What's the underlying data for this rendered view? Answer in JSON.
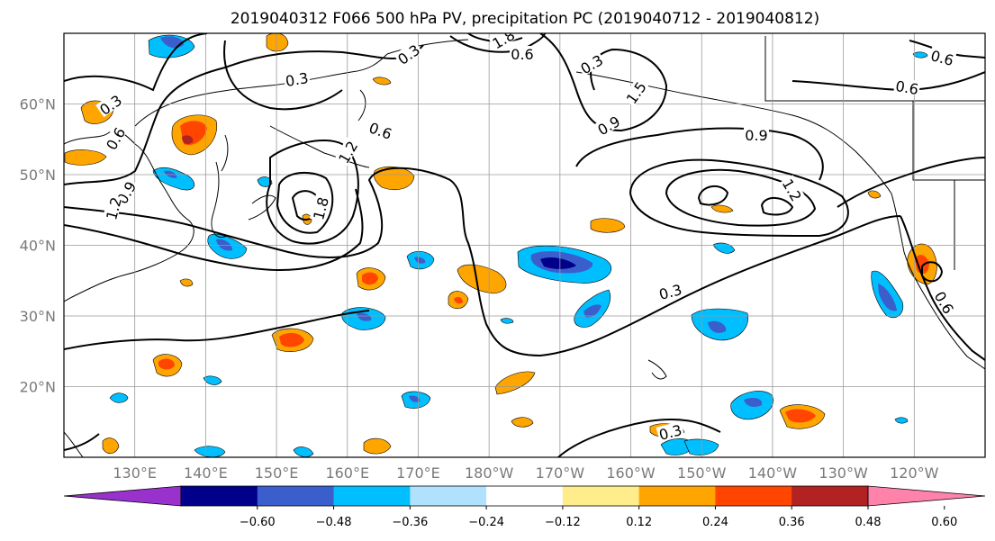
{
  "title": "2019040312 F066 500 hPa PV, precipitation PC (2019040712 - 2019040812)",
  "map": {
    "lon_labels": [
      "130°E",
      "140°E",
      "150°E",
      "160°E",
      "170°E",
      "180°W",
      "170°W",
      "160°W",
      "150°W",
      "140°W",
      "130°W",
      "120°W"
    ],
    "lat_labels": [
      "20°N",
      "30°N",
      "40°N",
      "50°N",
      "60°N"
    ],
    "lon_range": [
      120,
      250
    ],
    "lat_range": [
      10,
      70
    ],
    "grid": true
  },
  "colorbar": {
    "colors": [
      "#9932cc",
      "#00008b",
      "#3a5fcd",
      "#00bfff",
      "#b0e2ff",
      "#ffffff",
      "#ffec8b",
      "#ffa500",
      "#ff4500",
      "#b22222",
      "#ff82ab"
    ],
    "tick_labels": [
      "−0.60",
      "−0.48",
      "−0.36",
      "−0.24",
      "−0.12",
      "0.12",
      "0.24",
      "0.36",
      "0.48",
      "0.60"
    ],
    "extend": "both"
  },
  "pv_contour_labels": [
    "0.3",
    "0.3",
    "0.3",
    "0.3",
    "0.3",
    "0.6",
    "0.6",
    "0.6",
    "0.6",
    "0.6",
    "0.9",
    "0.9",
    "0.9",
    "1.2",
    "1.2",
    "1.2",
    "1.5",
    "1.8",
    "1.8",
    "0.6",
    "0.3"
  ]
}
